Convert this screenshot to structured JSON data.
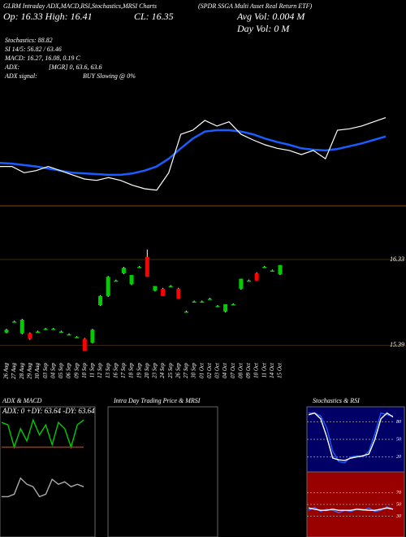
{
  "chart_data": {
    "type": "candlestick",
    "title": "GLRM Intraday ADX,MACD,RSI,Stochastics,MRSI Charts",
    "subtitle": "(SPDR SSGA Multi Asset Real Return ETF)",
    "open_high": "Op: 16.33  High: 16.41",
    "close_text": "CL: 16.35",
    "avg_vol": "Avg Vol: 0.004  M",
    "day_vol": "Day Vol: 0   M",
    "info_lines": [
      "Stochastics: 88.82",
      "SI 14/5: 56.82 / 63.46",
      "MACD: 16.27, 16.08, 0.19 C",
      "ADX:",
      "[MGR] 0, 63.6, 63.6",
      "ADX  signal:",
      "BUY Slowing @ 0%"
    ],
    "categories": [
      "26 Aug",
      "27 Aug",
      "28 Aug",
      "29 Aug",
      "30 Aug",
      "03 Sep",
      "04 Sep",
      "05 Sep",
      "06 Sep",
      "09 Sep",
      "10 Sep",
      "11 Sep",
      "12 Sep",
      "13 Sep",
      "16 Sep",
      "17 Sep",
      "18 Sep",
      "19 Sep",
      "20 Sep",
      "23 Sep",
      "24 Sep",
      "25 Sep",
      "26 Sep",
      "27 Sep",
      "30 Sep",
      "01 Oct",
      "02 Oct",
      "03 Oct",
      "04 Oct",
      "07 Oct",
      "08 Oct",
      "09 Oct",
      "10 Oct",
      "11 Oct",
      "14 Oct",
      "15 Oct"
    ],
    "open": [
      15.53,
      15.65,
      15.52,
      15.52,
      15.54,
      15.57,
      15.57,
      15.54,
      15.51,
      15.48,
      15.46,
      15.42,
      15.83,
      15.93,
      16.1,
      16.18,
      16.06,
      16.25,
      16.36,
      15.99,
      16.01,
      16.04,
      16.01,
      15.76,
      15.87,
      15.87,
      15.9,
      15.82,
      15.76,
      15.84,
      16.01,
      16.1,
      16.18,
      16.25,
      16.21,
      16.17
    ],
    "high": [
      15.57,
      15.66,
      15.68,
      15.53,
      15.55,
      15.58,
      15.58,
      15.55,
      15.52,
      15.49,
      15.47,
      15.57,
      15.94,
      16.15,
      16.11,
      16.25,
      16.16,
      16.26,
      16.44,
      16.04,
      16.02,
      16.05,
      16.02,
      15.77,
      15.88,
      15.88,
      15.91,
      15.83,
      15.84,
      15.85,
      16.12,
      16.11,
      16.19,
      16.26,
      16.22,
      16.27
    ],
    "low": [
      15.52,
      15.64,
      15.51,
      15.45,
      15.53,
      15.56,
      15.56,
      15.53,
      15.5,
      15.47,
      15.33,
      15.41,
      15.82,
      15.92,
      16.09,
      16.17,
      16.05,
      16.24,
      16.14,
      15.98,
      15.93,
      16.03,
      15.9,
      15.75,
      15.86,
      15.86,
      15.89,
      15.81,
      15.75,
      15.83,
      16.0,
      16.09,
      16.1,
      16.24,
      16.2,
      16.16
    ],
    "close": [
      15.56,
      15.65,
      15.67,
      15.46,
      15.54,
      15.57,
      15.57,
      15.54,
      15.51,
      15.48,
      15.33,
      15.56,
      15.93,
      16.14,
      16.1,
      16.24,
      16.16,
      16.25,
      16.14,
      16.04,
      15.93,
      16.04,
      15.9,
      15.76,
      15.87,
      15.87,
      15.9,
      15.82,
      15.84,
      15.84,
      16.12,
      16.1,
      16.1,
      16.25,
      16.21,
      16.27
    ],
    "up_color": "#00cc00",
    "down_color": "#ff0000",
    "ylim": [
      15.25,
      16.5
    ],
    "yticks": [
      16.33,
      15.39
    ],
    "line_panel": {
      "ylim": [
        15.2,
        16.6
      ],
      "close_line": {
        "color": "#ffffff",
        "values": [
          15.73,
          15.73,
          15.64,
          15.67,
          15.73,
          15.67,
          15.61,
          15.55,
          15.53,
          15.57,
          15.53,
          15.46,
          15.41,
          15.39,
          15.64,
          16.19,
          16.25,
          16.39,
          16.31,
          16.37,
          16.19,
          16.11,
          16.04,
          15.99,
          15.96,
          15.9,
          15.96,
          15.84,
          16.25,
          16.27,
          16.31,
          16.37,
          16.43
        ]
      },
      "ma_line": {
        "color": "#1a5cff",
        "values": [
          15.78,
          15.77,
          15.75,
          15.73,
          15.7,
          15.67,
          15.64,
          15.63,
          15.62,
          15.61,
          15.61,
          15.63,
          15.67,
          15.73,
          15.84,
          15.99,
          16.13,
          16.23,
          16.25,
          16.25,
          16.23,
          16.19,
          16.13,
          16.08,
          16.04,
          15.99,
          15.97,
          15.96,
          15.98,
          16.02,
          16.06,
          16.11,
          16.16
        ]
      }
    },
    "panels": [
      {
        "title": "ADX  & MACD",
        "text": "ADX: 0   +DY: 63.64   -DY: 63.64",
        "ylim": [
          0,
          100
        ],
        "series": [
          {
            "color": "#00cc00",
            "values": [
              90,
              88,
              70,
              85,
              75,
              92,
              80,
              88,
              72,
              90,
              85,
              70,
              88,
              92
            ]
          },
          {
            "color": "#cc3300",
            "values": [
              70,
              70,
              70,
              70,
              70,
              70,
              70,
              70,
              70,
              70,
              70,
              70,
              70,
              70
            ]
          },
          {
            "color": "#aaaaaa",
            "values": [
              30,
              30,
              32,
              45,
              40,
              38,
              30,
              32,
              44,
              40,
              42,
              38,
              40,
              38
            ]
          }
        ]
      },
      {
        "title": "Intra Day Trading Price  & MRSI",
        "ylim": [
          0,
          100
        ],
        "series": []
      },
      {
        "title": "Stochastics & RSI",
        "ylim": [
          0,
          100
        ],
        "yticks": [
          80,
          50,
          20
        ],
        "series": [
          {
            "color": "#1a5cff",
            "values": [
              95,
              95,
              90,
              70,
              30,
              12,
              10,
              20,
              22,
              20,
              30,
              60,
              95,
              92,
              90
            ]
          },
          {
            "color": "#ffffff",
            "values": [
              92,
              95,
              85,
              55,
              18,
              15,
              14,
              18,
              20,
              22,
              25,
              50,
              85,
              95,
              88
            ]
          }
        ]
      },
      {
        "title": "",
        "ylim": [
          0,
          100
        ],
        "yticks": [
          70,
          50,
          30
        ],
        "series": [
          {
            "color": "#3366ff",
            "values": [
              40,
              45,
              38,
              42,
              40,
              36,
              40,
              38,
              42,
              40,
              44,
              38,
              40,
              46,
              42
            ]
          },
          {
            "color": "#ffffff",
            "values": [
              44,
              42,
              40,
              40,
              42,
              40,
              40,
              40,
              42,
              41,
              40,
              40,
              42,
              44,
              42
            ]
          }
        ]
      }
    ]
  }
}
